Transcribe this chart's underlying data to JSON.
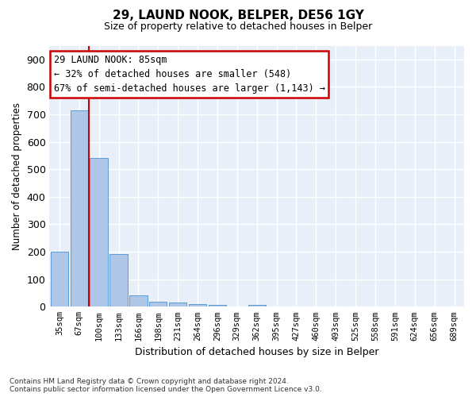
{
  "title": "29, LAUND NOOK, BELPER, DE56 1GY",
  "subtitle": "Size of property relative to detached houses in Belper",
  "xlabel": "Distribution of detached houses by size in Belper",
  "ylabel": "Number of detached properties",
  "categories": [
    "35sqm",
    "67sqm",
    "100sqm",
    "133sqm",
    "166sqm",
    "198sqm",
    "231sqm",
    "264sqm",
    "296sqm",
    "329sqm",
    "362sqm",
    "395sqm",
    "427sqm",
    "460sqm",
    "493sqm",
    "525sqm",
    "558sqm",
    "591sqm",
    "624sqm",
    "656sqm",
    "689sqm"
  ],
  "values": [
    200,
    715,
    540,
    192,
    42,
    18,
    14,
    10,
    7,
    0,
    8,
    0,
    0,
    0,
    0,
    0,
    0,
    0,
    0,
    0,
    0
  ],
  "bar_color": "#aec6e8",
  "bar_edge_color": "#5b9bd5",
  "vline_x": 1.5,
  "vline_color": "#cc0000",
  "annotation_text": "29 LAUND NOOK: 85sqm\n← 32% of detached houses are smaller (548)\n67% of semi-detached houses are larger (1,143) →",
  "annotation_box_color": "#cc0000",
  "annotation_fontsize": 8.5,
  "ylim": [
    0,
    950
  ],
  "yticks": [
    0,
    100,
    200,
    300,
    400,
    500,
    600,
    700,
    800,
    900
  ],
  "background_color": "#e8eff8",
  "grid_color": "#ffffff",
  "footnote": "Contains HM Land Registry data © Crown copyright and database right 2024.\nContains public sector information licensed under the Open Government Licence v3.0."
}
